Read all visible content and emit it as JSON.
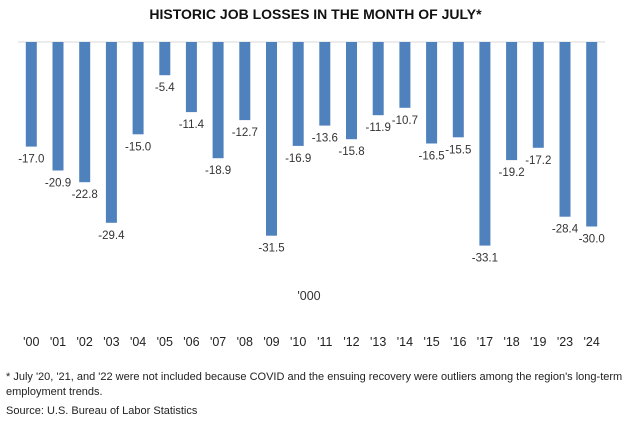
{
  "chart_data": {
    "type": "bar",
    "title": "HISTORIC JOB LOSSES IN THE MONTH OF JULY*",
    "unit_label": "'000",
    "categories": [
      "'00",
      "'01",
      "'02",
      "'03",
      "'04",
      "'05",
      "'06",
      "'07",
      "'08",
      "'09",
      "'10",
      "'11",
      "'12",
      "'13",
      "'14",
      "'15",
      "'16",
      "'17",
      "'18",
      "'19",
      "'23",
      "'24"
    ],
    "values": [
      -17.0,
      -20.9,
      -22.8,
      -29.4,
      -15.0,
      -5.4,
      -11.4,
      -18.9,
      -12.7,
      -31.5,
      -16.9,
      -13.6,
      -15.8,
      -11.9,
      -10.7,
      -16.5,
      -15.5,
      -33.1,
      -19.2,
      -17.2,
      -28.4,
      -30.0
    ],
    "value_labels": [
      "-17.0",
      "-20.9",
      "-22.8",
      "-29.4",
      "-15.0",
      "-5.4",
      "-11.4",
      "-18.9",
      "-12.7",
      "-31.5",
      "-16.9",
      "-13.6",
      "-15.8",
      "-11.9",
      "-10.7",
      "-16.5",
      "-15.5",
      "-33.1",
      "-19.2",
      "-17.2",
      "-28.4",
      "-30.0"
    ],
    "bar_color": "#4f81bd",
    "ylim": [
      -35,
      0
    ],
    "grid": false,
    "legend": "none"
  },
  "footnote": "* July '20, '21, and '22 were not included because COVID and the ensuing recovery were outliers among the region's long-term employment trends.",
  "source": "Source: U.S. Bureau of Labor Statistics"
}
